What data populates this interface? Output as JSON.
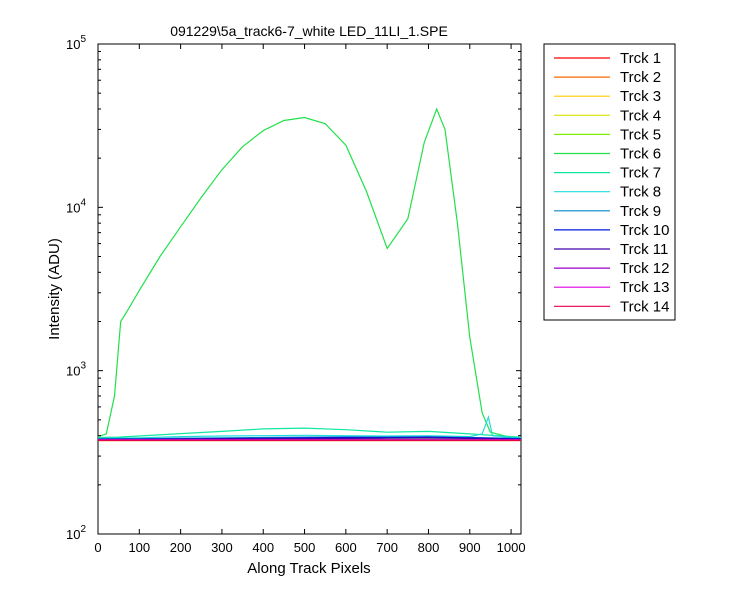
{
  "chart_data": {
    "type": "line",
    "title": "091229\\5a_track6-7_white LED_11LI_1.SPE",
    "xlabel": "Along Track Pixels",
    "ylabel": "Intensity (ADU)",
    "xlim": [
      0,
      1024
    ],
    "ylim": [
      100,
      100000
    ],
    "yscale": "log",
    "grid": false,
    "legend_position": "outside-right-top",
    "x_ticks": [
      0,
      100,
      200,
      300,
      400,
      500,
      600,
      700,
      800,
      900,
      1000
    ],
    "y_ticks": [
      {
        "base": "10",
        "exp": "2"
      },
      {
        "base": "10",
        "exp": "3"
      },
      {
        "base": "10",
        "exp": "4"
      },
      {
        "base": "10",
        "exp": "5"
      }
    ],
    "series": [
      {
        "name": "Trck 1",
        "color": "#ff0000",
        "x": [
          0,
          1024
        ],
        "y": [
          375,
          375
        ]
      },
      {
        "name": "Trck 2",
        "color": "#ff6a00",
        "x": [
          0,
          1024
        ],
        "y": [
          373,
          373
        ]
      },
      {
        "name": "Trck 3",
        "color": "#ffcc00",
        "x": [
          0,
          1024
        ],
        "y": [
          376,
          376
        ]
      },
      {
        "name": "Trck 4",
        "color": "#d4e600",
        "x": [
          0,
          1024
        ],
        "y": [
          378,
          378
        ]
      },
      {
        "name": "Trck 5",
        "color": "#7cf000",
        "x": [
          0,
          1024
        ],
        "y": [
          380,
          380
        ]
      },
      {
        "name": "Trck 6",
        "color": "#22e04a",
        "x": [
          0,
          20,
          40,
          55,
          70,
          100,
          150,
          200,
          250,
          300,
          350,
          400,
          450,
          500,
          550,
          600,
          650,
          700,
          750,
          790,
          820,
          840,
          870,
          900,
          930,
          950,
          1000,
          1024
        ],
        "y": [
          395,
          410,
          700,
          2000,
          2300,
          3100,
          5000,
          7600,
          11500,
          17000,
          23500,
          29500,
          34000,
          35500,
          32500,
          24000,
          12500,
          5600,
          8500,
          25000,
          40000,
          30000,
          8000,
          1600,
          550,
          420,
          390,
          390
        ]
      },
      {
        "name": "Trck 7",
        "color": "#10e8a0",
        "x": [
          0,
          50,
          100,
          200,
          300,
          400,
          500,
          600,
          700,
          800,
          900,
          1000,
          1024
        ],
        "y": [
          390,
          392,
          398,
          412,
          425,
          440,
          445,
          435,
          420,
          425,
          410,
          395,
          392
        ]
      },
      {
        "name": "Trck 8",
        "color": "#20dcdc",
        "x": [
          0,
          100,
          200,
          300,
          400,
          500,
          600,
          700,
          800,
          900,
          930,
          945,
          955,
          1000,
          1024
        ],
        "y": [
          385,
          388,
          395,
          398,
          400,
          402,
          400,
          398,
          400,
          395,
          410,
          520,
          400,
          390,
          388
        ]
      },
      {
        "name": "Trck 9",
        "color": "#0088cc",
        "x": [
          0,
          100,
          200,
          300,
          400,
          500,
          600,
          700,
          800,
          900,
          1000,
          1024
        ],
        "y": [
          382,
          383,
          386,
          388,
          390,
          392,
          393,
          392,
          393,
          390,
          386,
          385
        ]
      },
      {
        "name": "Trck 10",
        "color": "#0018e0",
        "x": [
          0,
          100,
          200,
          300,
          400,
          500,
          600,
          700,
          800,
          900,
          1000,
          1024
        ],
        "y": [
          380,
          381,
          382,
          384,
          386,
          388,
          390,
          390,
          392,
          388,
          383,
          382
        ]
      },
      {
        "name": "Trck 11",
        "color": "#4400aa",
        "x": [
          0,
          100,
          200,
          300,
          400,
          500,
          600,
          700,
          800,
          900,
          1000,
          1024
        ],
        "y": [
          379,
          380,
          381,
          382,
          383,
          384,
          385,
          386,
          387,
          385,
          381,
          380
        ]
      },
      {
        "name": "Trck 12",
        "color": "#9900cc",
        "x": [
          0,
          1024
        ],
        "y": [
          378,
          378
        ]
      },
      {
        "name": "Trck 13",
        "color": "#dd00dd",
        "x": [
          0,
          1024
        ],
        "y": [
          377,
          377
        ]
      },
      {
        "name": "Trck 14",
        "color": "#e8004a",
        "x": [
          0,
          1024
        ],
        "y": [
          374,
          374
        ]
      }
    ]
  }
}
